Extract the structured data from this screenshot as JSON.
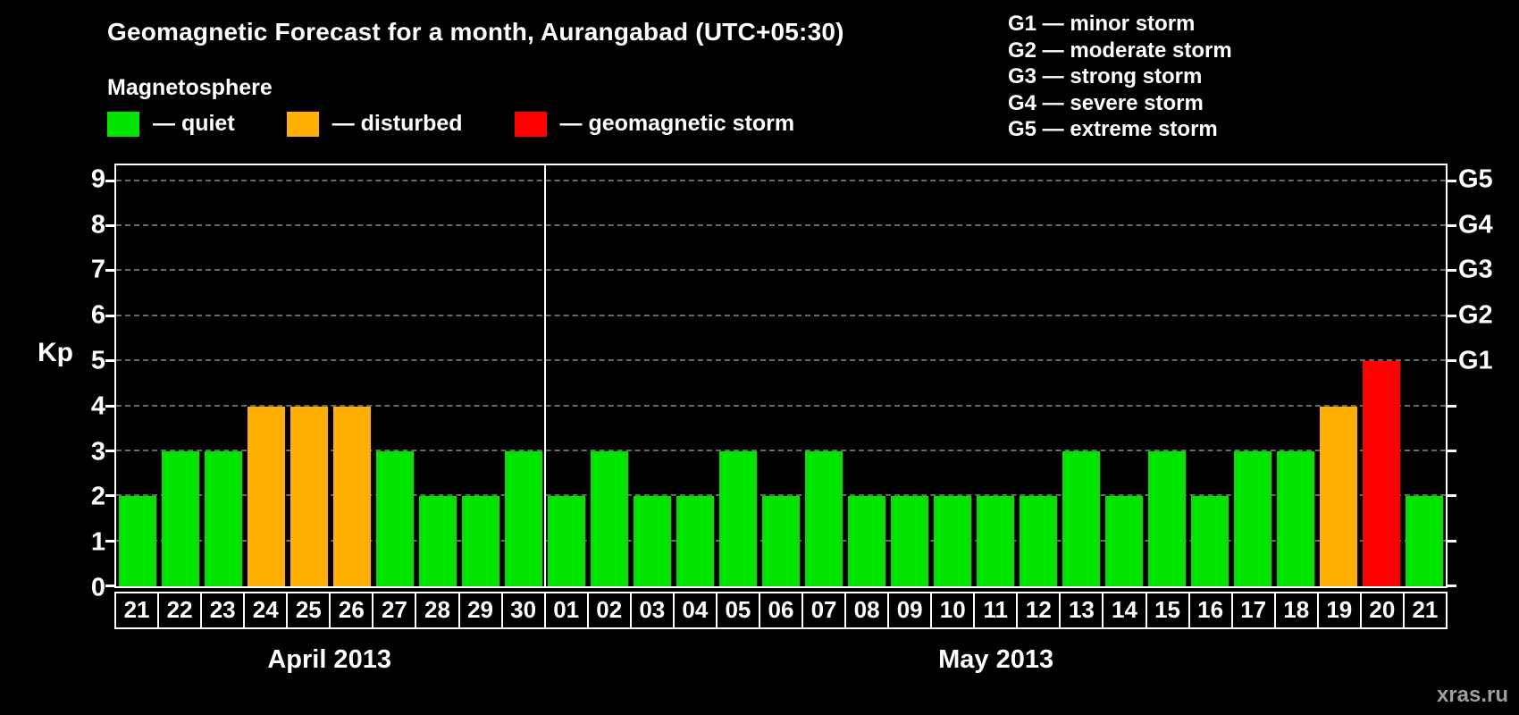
{
  "header": {
    "title": "Geomagnetic Forecast for a month, Aurangabad (UTC+05:30)"
  },
  "legend": {
    "title": "Magnetosphere",
    "items": [
      {
        "key": "quiet",
        "label": "— quiet",
        "color": "#00e400"
      },
      {
        "key": "disturbed",
        "label": "— disturbed",
        "color": "#ffb000"
      },
      {
        "key": "storm",
        "label": "— geomagnetic storm",
        "color": "#ff0000"
      }
    ]
  },
  "g_scale": {
    "lines": [
      "G1 — minor storm",
      "G2 — moderate storm",
      "G3 — strong storm",
      "G4 — severe storm",
      "G5 — extreme storm"
    ]
  },
  "chart_data": {
    "type": "bar",
    "title": "Geomagnetic Forecast for a month, Aurangabad (UTC+05:30)",
    "xlabel": "",
    "ylabel": "Kp",
    "ylim": [
      0,
      9
    ],
    "yticks": [
      0,
      1,
      2,
      3,
      4,
      5,
      6,
      7,
      8,
      9
    ],
    "grid": true,
    "legend_position": "top",
    "colors": {
      "quiet": "#00e400",
      "disturbed": "#ffb000",
      "storm": "#ff0000"
    },
    "g_ticks": [
      {
        "label": "G1",
        "kp": 5
      },
      {
        "label": "G2",
        "kp": 6
      },
      {
        "label": "G3",
        "kp": 7
      },
      {
        "label": "G4",
        "kp": 8
      },
      {
        "label": "G5",
        "kp": 9
      }
    ],
    "bars": [
      {
        "date": "21",
        "month": "April 2013",
        "kp": 2,
        "state": "quiet"
      },
      {
        "date": "22",
        "month": "April 2013",
        "kp": 3,
        "state": "quiet"
      },
      {
        "date": "23",
        "month": "April 2013",
        "kp": 3,
        "state": "quiet"
      },
      {
        "date": "24",
        "month": "April 2013",
        "kp": 4,
        "state": "disturbed"
      },
      {
        "date": "25",
        "month": "April 2013",
        "kp": 4,
        "state": "disturbed"
      },
      {
        "date": "26",
        "month": "April 2013",
        "kp": 4,
        "state": "disturbed"
      },
      {
        "date": "27",
        "month": "April 2013",
        "kp": 3,
        "state": "quiet"
      },
      {
        "date": "28",
        "month": "April 2013",
        "kp": 2,
        "state": "quiet"
      },
      {
        "date": "29",
        "month": "April 2013",
        "kp": 2,
        "state": "quiet"
      },
      {
        "date": "30",
        "month": "April 2013",
        "kp": 3,
        "state": "quiet"
      },
      {
        "date": "01",
        "month": "May 2013",
        "kp": 2,
        "state": "quiet"
      },
      {
        "date": "02",
        "month": "May 2013",
        "kp": 3,
        "state": "quiet"
      },
      {
        "date": "03",
        "month": "May 2013",
        "kp": 2,
        "state": "quiet"
      },
      {
        "date": "04",
        "month": "May 2013",
        "kp": 2,
        "state": "quiet"
      },
      {
        "date": "05",
        "month": "May 2013",
        "kp": 3,
        "state": "quiet"
      },
      {
        "date": "06",
        "month": "May 2013",
        "kp": 2,
        "state": "quiet"
      },
      {
        "date": "07",
        "month": "May 2013",
        "kp": 3,
        "state": "quiet"
      },
      {
        "date": "08",
        "month": "May 2013",
        "kp": 2,
        "state": "quiet"
      },
      {
        "date": "09",
        "month": "May 2013",
        "kp": 2,
        "state": "quiet"
      },
      {
        "date": "10",
        "month": "May 2013",
        "kp": 2,
        "state": "quiet"
      },
      {
        "date": "11",
        "month": "May 2013",
        "kp": 2,
        "state": "quiet"
      },
      {
        "date": "12",
        "month": "May 2013",
        "kp": 2,
        "state": "quiet"
      },
      {
        "date": "13",
        "month": "May 2013",
        "kp": 3,
        "state": "quiet"
      },
      {
        "date": "14",
        "month": "May 2013",
        "kp": 2,
        "state": "quiet"
      },
      {
        "date": "15",
        "month": "May 2013",
        "kp": 3,
        "state": "quiet"
      },
      {
        "date": "16",
        "month": "May 2013",
        "kp": 2,
        "state": "quiet"
      },
      {
        "date": "17",
        "month": "May 2013",
        "kp": 3,
        "state": "quiet"
      },
      {
        "date": "18",
        "month": "May 2013",
        "kp": 3,
        "state": "quiet"
      },
      {
        "date": "19",
        "month": "May 2013",
        "kp": 4,
        "state": "disturbed"
      },
      {
        "date": "20",
        "month": "May 2013",
        "kp": 5,
        "state": "storm"
      },
      {
        "date": "21",
        "month": "May 2013",
        "kp": 2,
        "state": "quiet"
      }
    ]
  },
  "footer": {
    "watermark": "xras.ru"
  }
}
